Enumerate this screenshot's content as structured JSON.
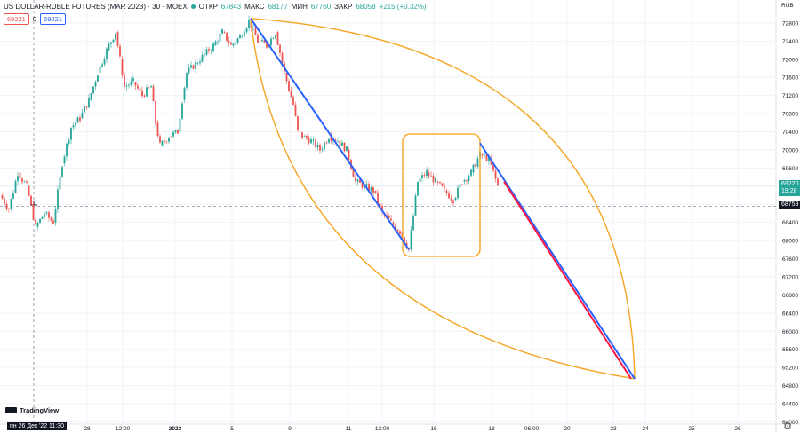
{
  "header": {
    "title": "US DOLLAR-RUBLE FUTURES (MAR 2023) · 30 · MOEX",
    "open_label": "ОТКР",
    "open_value": "67843",
    "high_label": "МАКС",
    "high_value": "68177",
    "low_label": "МИН",
    "low_value": "67760",
    "close_label": "ЗАКР",
    "close_value": "68058",
    "change": "+215 (+0.32%)"
  },
  "quote_boxes": {
    "bid": "69221",
    "spread": "0",
    "ask": "69221"
  },
  "axis": {
    "currency": "RUB",
    "current_price": "69220",
    "countdown": "19:28",
    "cursor_price": "68759",
    "cursor_date": "пн 26 Дек '22   11:30"
  },
  "branding": {
    "logo_text": "TradingView"
  },
  "colors": {
    "up": "#26a69a",
    "down": "#ef5350",
    "trend": "#2962ff",
    "arc": "#f5a623",
    "projection": "#ff1744"
  },
  "chart_data": {
    "type": "candlestick",
    "y_ticks": [
      72800,
      72400,
      72000,
      71600,
      71200,
      70800,
      70400,
      70000,
      69600,
      69200,
      68800,
      68400,
      68000,
      67600,
      67200,
      66800,
      66400,
      66000,
      65600,
      65200,
      64800,
      64400,
      64000
    ],
    "ylim": [
      63950,
      73150
    ],
    "x_ticks": [
      "28",
      "12:00",
      "2023",
      "5",
      "9",
      "11",
      "12:00",
      "16",
      "18",
      "06:00",
      "20",
      "23",
      "24",
      "25",
      "26"
    ],
    "series_close_approx": [
      [
        0,
        69000
      ],
      [
        10,
        68700
      ],
      [
        20,
        69500
      ],
      [
        30,
        69200
      ],
      [
        40,
        68300
      ],
      [
        50,
        68600
      ],
      [
        60,
        68400
      ],
      [
        70,
        69700
      ],
      [
        80,
        70500
      ],
      [
        90,
        70700
      ],
      [
        100,
        71100
      ],
      [
        110,
        71700
      ],
      [
        120,
        72200
      ],
      [
        130,
        72600
      ],
      [
        135,
        72000
      ],
      [
        140,
        71400
      ],
      [
        150,
        71500
      ],
      [
        160,
        71200
      ],
      [
        170,
        71400
      ],
      [
        175,
        70600
      ],
      [
        180,
        70100
      ],
      [
        190,
        70300
      ],
      [
        200,
        70400
      ],
      [
        205,
        71100
      ],
      [
        210,
        71700
      ],
      [
        220,
        71900
      ],
      [
        230,
        72100
      ],
      [
        240,
        72300
      ],
      [
        250,
        72600
      ],
      [
        260,
        72300
      ],
      [
        270,
        72500
      ],
      [
        280,
        72850
      ],
      [
        290,
        72400
      ],
      [
        300,
        72300
      ],
      [
        310,
        72600
      ],
      [
        320,
        71700
      ],
      [
        330,
        71000
      ],
      [
        335,
        70400
      ],
      [
        340,
        70300
      ],
      [
        350,
        70200
      ],
      [
        360,
        70000
      ],
      [
        370,
        70300
      ],
      [
        380,
        70200
      ],
      [
        390,
        70000
      ],
      [
        400,
        69300
      ],
      [
        410,
        69200
      ],
      [
        420,
        69100
      ],
      [
        430,
        68600
      ],
      [
        440,
        68400
      ],
      [
        450,
        68200
      ],
      [
        460,
        67800
      ],
      [
        470,
        69300
      ],
      [
        480,
        69500
      ],
      [
        490,
        69300
      ],
      [
        500,
        69100
      ],
      [
        510,
        68900
      ],
      [
        520,
        69300
      ],
      [
        530,
        69500
      ],
      [
        540,
        69900
      ],
      [
        550,
        69800
      ],
      [
        560,
        69200
      ]
    ],
    "trend_lines": [
      {
        "name": "",
        "from": [
          282,
          72900
        ],
        "to": [
          460,
          67800
        ]
      },
      {
        "name": "",
        "from": [
          540,
          70150
        ],
        "to": [
          714,
          64950
        ]
      },
      {
        "name": "",
        "from": [
          567,
          69300
        ],
        "to": [
          710,
          64950
        ]
      }
    ],
    "projection_target": 64950
  }
}
